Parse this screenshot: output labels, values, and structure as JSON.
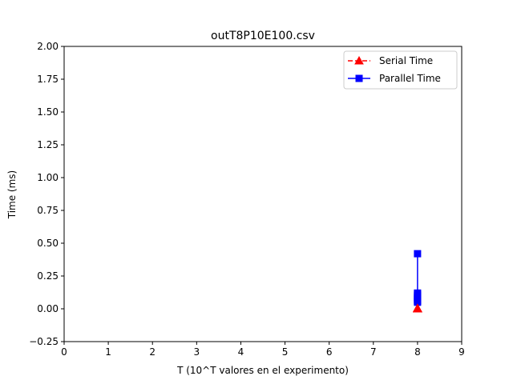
{
  "chart_data": {
    "type": "line",
    "title": "outT8P10E100.csv",
    "xlabel": "T (10^T valores en el experimento)",
    "ylabel": "Time (ms)",
    "xlim": [
      0,
      9
    ],
    "ylim": [
      -0.25,
      2.0
    ],
    "xticks": [
      0,
      1,
      2,
      3,
      4,
      5,
      6,
      7,
      8,
      9
    ],
    "xtick_labels": [
      "0",
      "1",
      "2",
      "3",
      "4",
      "5",
      "6",
      "7",
      "8",
      "9"
    ],
    "yticks": [
      -0.25,
      0.0,
      0.25,
      0.5,
      0.75,
      1.0,
      1.25,
      1.5,
      1.75,
      2.0
    ],
    "ytick_labels": [
      "−0.25",
      "0.00",
      "0.25",
      "0.50",
      "0.75",
      "1.00",
      "1.25",
      "1.50",
      "1.75",
      "2.00"
    ],
    "grid": false,
    "legend_position": "top-right",
    "series": [
      {
        "name": "Serial Time",
        "color": "#ff0000",
        "line_style": "dashed",
        "marker": "triangle",
        "x": [
          8,
          8,
          8,
          8,
          8,
          8,
          8,
          8,
          8,
          8
        ],
        "y": [
          0.0,
          0.001,
          0.0,
          0.002,
          0.001,
          0.0,
          0.003,
          0.001,
          0.0,
          0.002
        ]
      },
      {
        "name": "Parallel Time",
        "color": "#0000ff",
        "line_style": "solid",
        "marker": "square",
        "x": [
          8,
          8,
          8,
          8,
          8,
          8,
          8,
          8,
          8,
          8
        ],
        "y": [
          0.42,
          0.12,
          0.06,
          0.09,
          0.05,
          0.1,
          0.07,
          0.08,
          0.06,
          0.11
        ]
      }
    ]
  }
}
